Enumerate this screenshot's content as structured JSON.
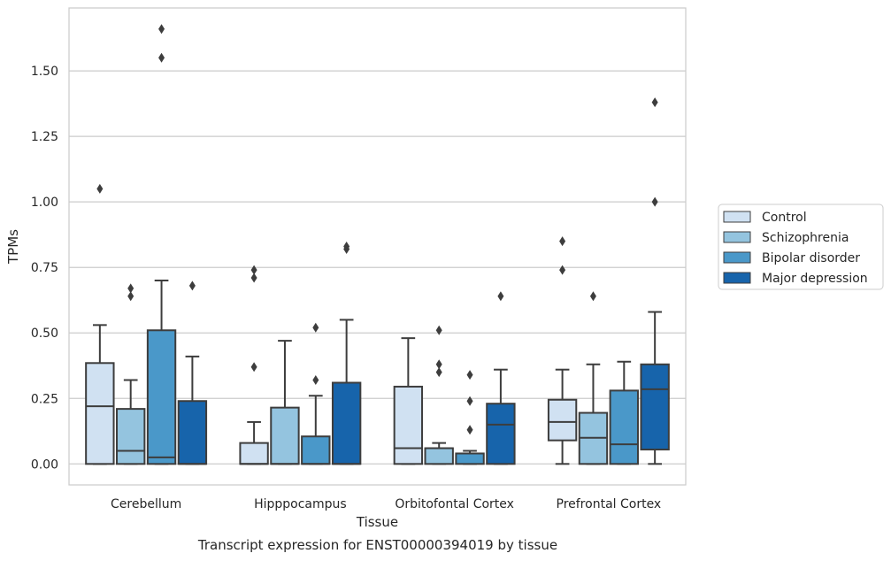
{
  "chart_data": {
    "type": "boxplot",
    "title": "",
    "caption": "Transcript expression for ENST00000394019 by tissue",
    "xlabel": "Tissue",
    "ylabel": "TPMs",
    "ylim": [
      -0.08,
      1.74
    ],
    "yticks": [
      0.0,
      0.25,
      0.5,
      0.75,
      1.0,
      1.25,
      1.5
    ],
    "ytick_labels": [
      "0.00",
      "0.25",
      "0.50",
      "0.75",
      "1.00",
      "1.25",
      "1.50"
    ],
    "grid": "horizontal",
    "legend_position": "right",
    "categories": [
      "Cerebellum",
      "Hipppocampus",
      "Orbitofontal Cortex",
      "Prefrontal Cortex"
    ],
    "series": [
      {
        "name": "Control",
        "color": "#d0e1f2",
        "boxes": [
          {
            "whislo": 0.0,
            "q1": 0.0,
            "med": 0.22,
            "q3": 0.385,
            "whishi": 0.53,
            "fliers": [
              1.05
            ]
          },
          {
            "whislo": 0.0,
            "q1": 0.0,
            "med": 0.0,
            "q3": 0.08,
            "whishi": 0.16,
            "fliers": [
              0.37,
              0.71,
              0.74
            ]
          },
          {
            "whislo": 0.0,
            "q1": 0.0,
            "med": 0.06,
            "q3": 0.295,
            "whishi": 0.48,
            "fliers": []
          },
          {
            "whislo": 0.0,
            "q1": 0.09,
            "med": 0.16,
            "q3": 0.245,
            "whishi": 0.36,
            "fliers": [
              0.74,
              0.85
            ]
          }
        ]
      },
      {
        "name": "Schizophrenia",
        "color": "#94c4df",
        "boxes": [
          {
            "whislo": 0.0,
            "q1": 0.0,
            "med": 0.05,
            "q3": 0.21,
            "whishi": 0.32,
            "fliers": [
              0.64,
              0.67
            ]
          },
          {
            "whislo": 0.0,
            "q1": 0.0,
            "med": 0.0,
            "q3": 0.215,
            "whishi": 0.47,
            "fliers": []
          },
          {
            "whislo": 0.0,
            "q1": 0.0,
            "med": 0.06,
            "q3": 0.06,
            "whishi": 0.08,
            "fliers": [
              0.35,
              0.38,
              0.51
            ]
          },
          {
            "whislo": 0.0,
            "q1": 0.0,
            "med": 0.1,
            "q3": 0.195,
            "whishi": 0.38,
            "fliers": [
              0.64
            ]
          }
        ]
      },
      {
        "name": "Bipolar disorder",
        "color": "#4a98c9",
        "boxes": [
          {
            "whislo": 0.0,
            "q1": 0.0,
            "med": 0.025,
            "q3": 0.51,
            "whishi": 0.7,
            "fliers": [
              1.55,
              1.66
            ]
          },
          {
            "whislo": 0.0,
            "q1": 0.0,
            "med": 0.0,
            "q3": 0.105,
            "whishi": 0.26,
            "fliers": [
              0.32,
              0.52
            ]
          },
          {
            "whislo": 0.0,
            "q1": 0.0,
            "med": 0.04,
            "q3": 0.04,
            "whishi": 0.05,
            "fliers": [
              0.13,
              0.24,
              0.34
            ]
          },
          {
            "whislo": 0.0,
            "q1": 0.0,
            "med": 0.075,
            "q3": 0.28,
            "whishi": 0.39,
            "fliers": []
          }
        ]
      },
      {
        "name": "Major depression",
        "color": "#1764ab",
        "boxes": [
          {
            "whislo": 0.0,
            "q1": 0.0,
            "med": 0.0,
            "q3": 0.24,
            "whishi": 0.41,
            "fliers": [
              0.68
            ]
          },
          {
            "whislo": 0.0,
            "q1": 0.0,
            "med": 0.0,
            "q3": 0.31,
            "whishi": 0.55,
            "fliers": [
              0.82,
              0.83
            ]
          },
          {
            "whislo": 0.0,
            "q1": 0.0,
            "med": 0.15,
            "q3": 0.23,
            "whishi": 0.36,
            "fliers": [
              0.64
            ]
          },
          {
            "whislo": 0.0,
            "q1": 0.055,
            "med": 0.285,
            "q3": 0.38,
            "whishi": 0.58,
            "fliers": [
              1.0,
              1.38
            ]
          }
        ]
      }
    ]
  }
}
